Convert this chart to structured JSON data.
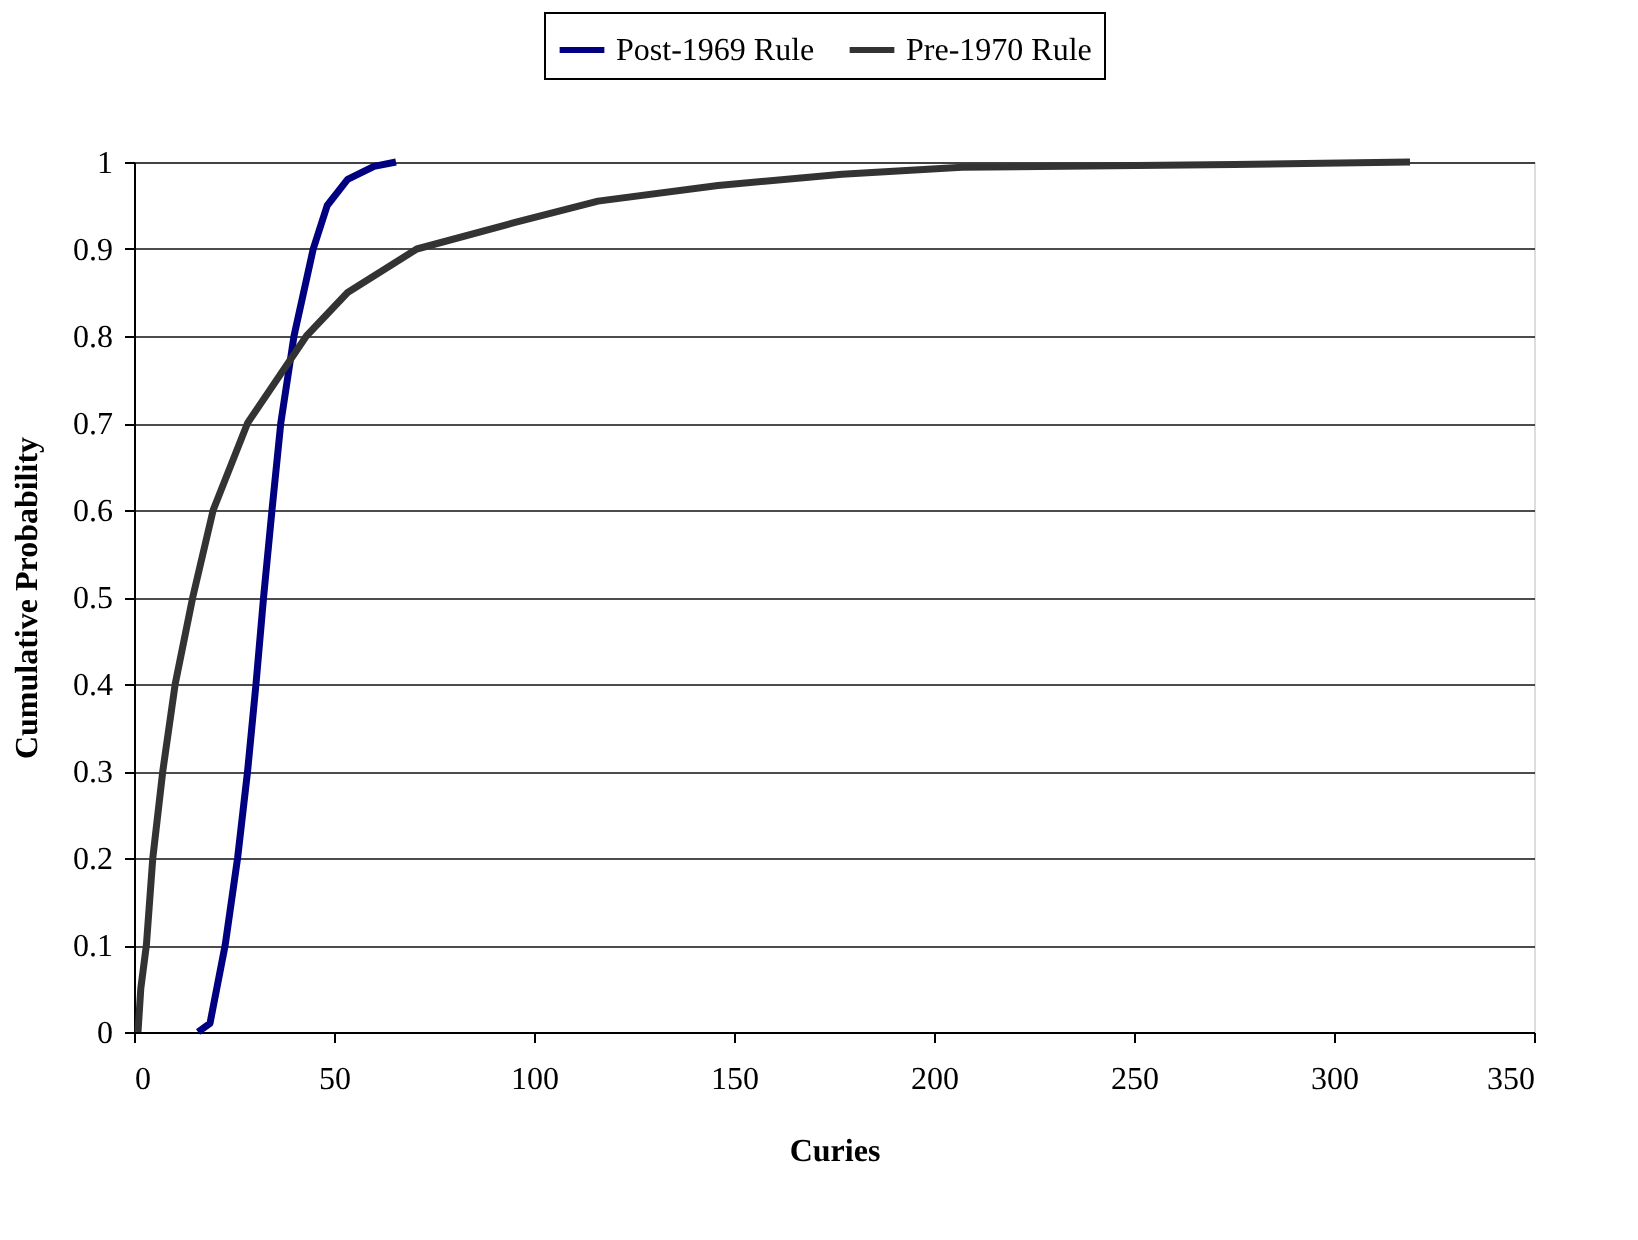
{
  "chart_data": {
    "type": "line",
    "xlabel": "Curies",
    "ylabel": "Cumulative Probability",
    "xlim": [
      0,
      350
    ],
    "xticks": [
      0,
      50,
      100,
      150,
      200,
      250,
      300,
      350
    ],
    "ylim": [
      0,
      1
    ],
    "yticks": [
      0,
      0.1,
      0.2,
      0.3,
      0.4,
      0.5,
      0.6,
      0.7,
      0.8,
      0.9,
      1
    ],
    "grid": "y",
    "legend": "top",
    "marker": "none",
    "line_style": "solid",
    "series": [
      {
        "name": "Post-1969 Rule",
        "color": "#000080",
        "x": [
          16,
          19,
          22.8,
          25.9,
          28.4,
          30.5,
          32.4,
          34.5,
          36.7,
          40,
          44.8,
          48.3,
          53.4,
          60,
          65.5
        ],
        "values": [
          0,
          0.01,
          0.1,
          0.2,
          0.3,
          0.4,
          0.5,
          0.6,
          0.7,
          0.8,
          0.9,
          0.95,
          0.98,
          0.995,
          1
        ]
      },
      {
        "name": "Pre-1970 Rule",
        "color": "#333333",
        "x": [
          1,
          1.7,
          3.1,
          4.7,
          7.2,
          10.3,
          14.7,
          19.8,
          28.4,
          43.1,
          53.4,
          70.7,
          94.8,
          116,
          146,
          177,
          207,
          275,
          319
        ],
        "values": [
          0,
          0.05,
          0.1,
          0.2,
          0.3,
          0.4,
          0.5,
          0.6,
          0.7,
          0.8,
          0.85,
          0.9,
          0.93,
          0.955,
          0.973,
          0.986,
          0.994,
          0.997,
          1
        ]
      }
    ]
  }
}
